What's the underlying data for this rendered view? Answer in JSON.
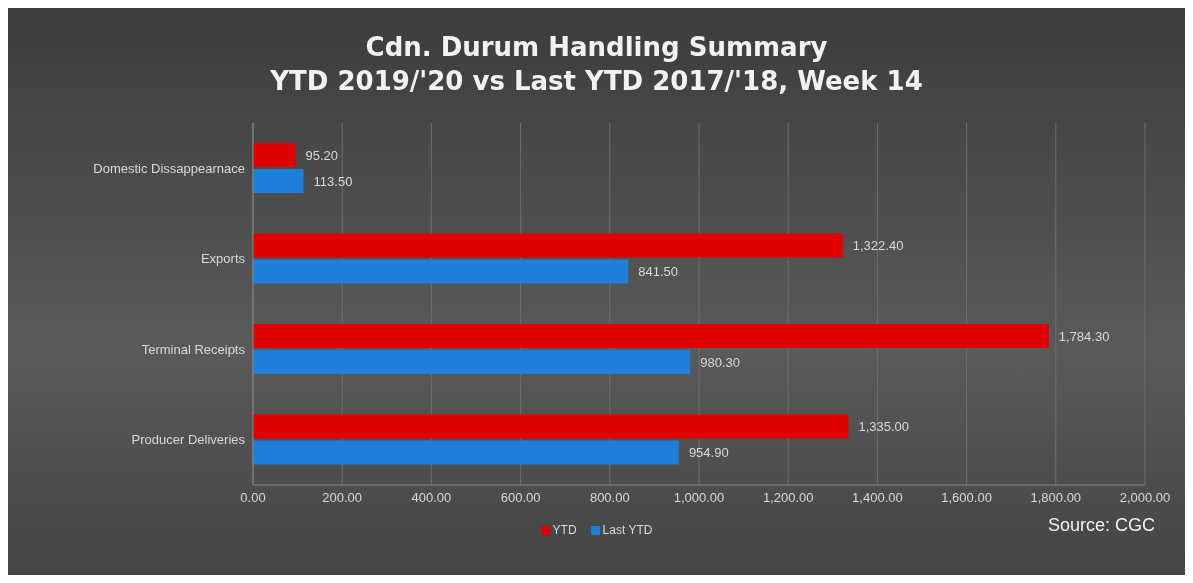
{
  "chart_data": {
    "type": "bar",
    "orientation": "horizontal",
    "title": "Cdn. Durum Handling Summary",
    "subtitle": "YTD 2019/'20 vs Last YTD 2017/'18, Week 14",
    "categories": [
      "Domestic Dissappearnace",
      "Exports",
      "Terminal Receipts",
      "Producer Deliveries"
    ],
    "series": [
      {
        "name": "YTD",
        "color": "#e00000",
        "values": [
          95.2,
          1322.4,
          1784.3,
          1335.0
        ],
        "value_labels": [
          "95.20",
          "1,322.40",
          "1,784.30",
          "1,335.00"
        ]
      },
      {
        "name": "Last YTD",
        "color": "#1e7fd8",
        "values": [
          113.5,
          841.5,
          980.3,
          954.9
        ],
        "value_labels": [
          "113.50",
          "841.50",
          "980.30",
          "954.90"
        ]
      }
    ],
    "xlim": [
      0,
      2000
    ],
    "xticks": [
      {
        "value": 0,
        "label": "0.00"
      },
      {
        "value": 200,
        "label": "200.00"
      },
      {
        "value": 400,
        "label": "400.00"
      },
      {
        "value": 600,
        "label": "600.00"
      },
      {
        "value": 800,
        "label": "800.00"
      },
      {
        "value": 1000,
        "label": "1,000.00"
      },
      {
        "value": 1200,
        "label": "1,200.00"
      },
      {
        "value": 1400,
        "label": "1,400.00"
      },
      {
        "value": 1600,
        "label": "1,600.00"
      },
      {
        "value": 1800,
        "label": "1,800.00"
      },
      {
        "value": 2000,
        "label": "2,000.00"
      }
    ],
    "grid": "x",
    "legend": "bottom",
    "annotations": [
      "Source: CGC"
    ]
  }
}
